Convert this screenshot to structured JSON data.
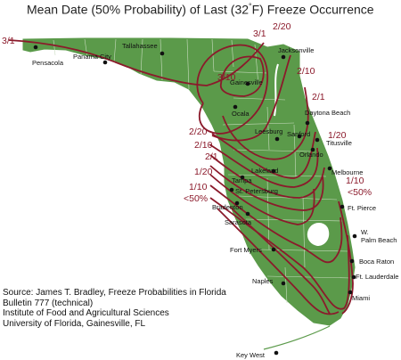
{
  "title": {
    "prefix": "Mean Date (50% Probability) of Last (32",
    "degree": "°",
    "suffix": "F) Freeze Occurrence"
  },
  "colors": {
    "land": "#5b9a4a",
    "county_lines": "#c9dcc0",
    "isoline": "#8b1a2b",
    "water": "#ffffff",
    "city_dot": "#111111"
  },
  "cities": [
    {
      "name": "Pensacola"
    },
    {
      "name": "Panama City"
    },
    {
      "name": "Tallahassee"
    },
    {
      "name": "Jacksonville"
    },
    {
      "name": "Gainesville"
    },
    {
      "name": "Ocala"
    },
    {
      "name": "Daytona Beach"
    },
    {
      "name": "Leesburg"
    },
    {
      "name": "Sanford"
    },
    {
      "name": "Titusville"
    },
    {
      "name": "Orlando"
    },
    {
      "name": "Lakeland"
    },
    {
      "name": "Melbourne"
    },
    {
      "name": "Tampa"
    },
    {
      "name": "St. Petersburg"
    },
    {
      "name": "Bradenton"
    },
    {
      "name": "Ft. Pierce"
    },
    {
      "name": "Sarasota"
    },
    {
      "name": "W. Palm Beach",
      "lines": [
        "W.",
        "Palm Beach"
      ]
    },
    {
      "name": "Fort Myers"
    },
    {
      "name": "Boca Raton"
    },
    {
      "name": "Ft. Lauderdale"
    },
    {
      "name": "Naples"
    },
    {
      "name": "Miami"
    },
    {
      "name": "Key West"
    }
  ],
  "isolines": [
    {
      "label": "3/1"
    },
    {
      "label": "3/1"
    },
    {
      "label": "3/10"
    },
    {
      "label": "2/20"
    },
    {
      "label": "2/10"
    },
    {
      "label": "2/1"
    },
    {
      "label": "2/20"
    },
    {
      "label": "1/20"
    },
    {
      "label": "2/10"
    },
    {
      "label": "2/1"
    },
    {
      "label": "1/20"
    },
    {
      "label": "1/10"
    },
    {
      "label": "1/10"
    },
    {
      "label": "<50%"
    },
    {
      "label": "<50%"
    }
  ],
  "source": [
    "Source: James T. Bradley, Freeze Probabilities in Florida",
    "Bulletin 777 (technical)",
    "Institute of Food and Agricultural Sciences",
    "University of Florida, Gainesville, FL"
  ]
}
